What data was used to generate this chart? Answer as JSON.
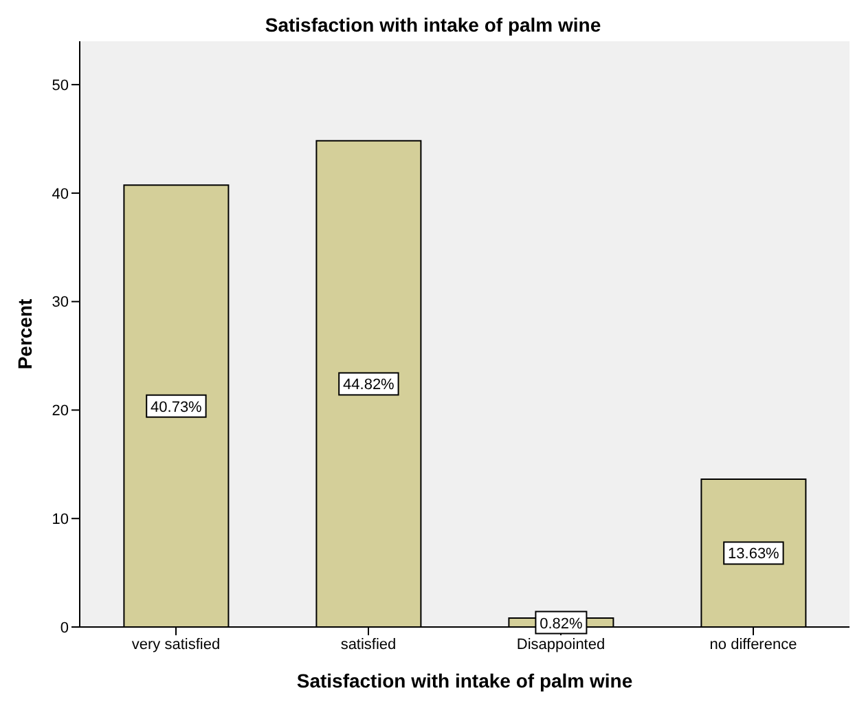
{
  "chart_data": {
    "type": "bar",
    "title": "Satisfaction with intake of palm wine",
    "xlabel": "Satisfaction with intake of palm wine",
    "ylabel": "Percent",
    "categories": [
      "very satisfied",
      "satisfied",
      "Disappointed",
      "no difference"
    ],
    "values": [
      40.73,
      44.82,
      0.82,
      13.63
    ],
    "value_labels": [
      "40.73%",
      "44.82%",
      "0.82%",
      "13.63%"
    ],
    "color": "#d4cf99",
    "ylim": [
      0,
      54
    ],
    "yticks": [
      0,
      10,
      20,
      30,
      40,
      50
    ],
    "grid": false
  }
}
